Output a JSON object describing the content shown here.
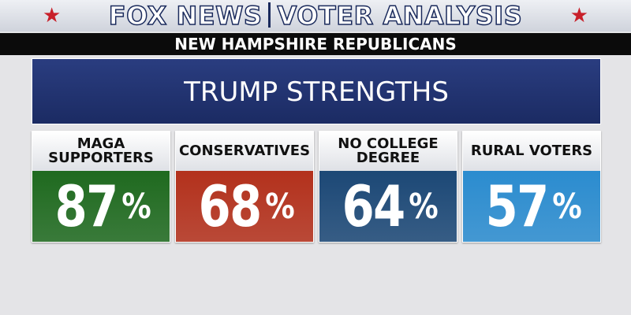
{
  "header": {
    "brand": "FOX NEWS",
    "title": "VOTER ANALYSIS"
  },
  "subheader": "NEW HAMPSHIRE REPUBLICANS",
  "panel_title": "TRUMP STRENGTHS",
  "cards": [
    {
      "label_lines": [
        "MAGA",
        "SUPPORTERS"
      ],
      "value": 87,
      "unit": "%",
      "color": "#1f6a1f"
    },
    {
      "label_lines": [
        "CONSERVATIVES"
      ],
      "value": 68,
      "unit": "%",
      "color": "#b3311c"
    },
    {
      "label_lines": [
        "NO COLLEGE",
        "DEGREE"
      ],
      "value": 64,
      "unit": "%",
      "color": "#1c4876"
    },
    {
      "label_lines": [
        "RURAL VOTERS"
      ],
      "value": 57,
      "unit": "%",
      "color": "#2b8ccf"
    }
  ]
}
